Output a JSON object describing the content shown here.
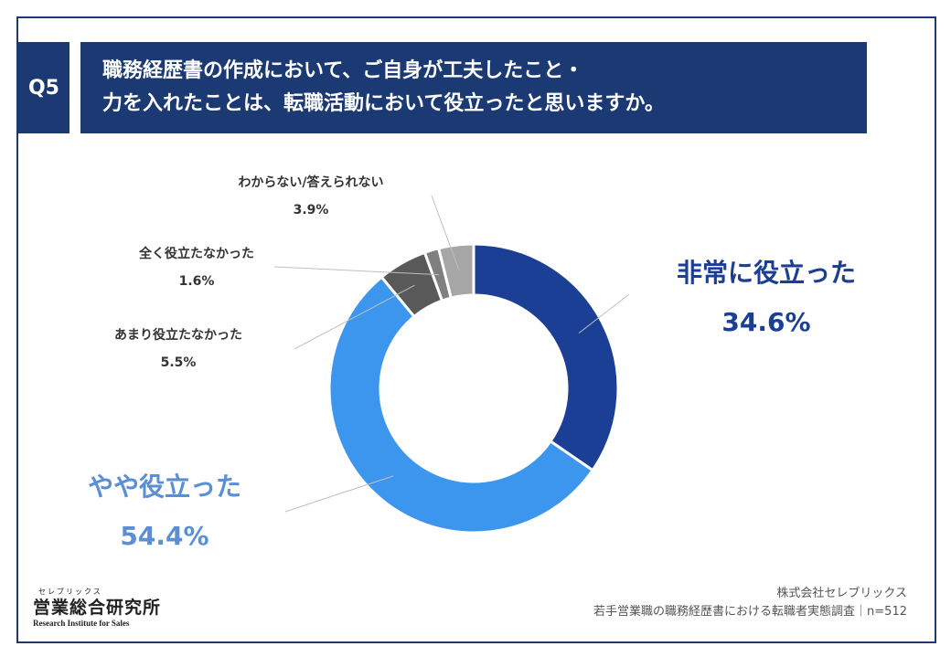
{
  "header": {
    "badge": "Q5",
    "title_line1": "職務経歴書の作成において、ご自身が工夫したこと・",
    "title_line2": "力を入れたことは、転職活動において役立ったと思いますか。"
  },
  "chart_data": {
    "type": "pie",
    "categories": [
      "非常に役立った",
      "やや役立った",
      "あまり役立たなかった",
      "全く役立たなかった",
      "わからない/答えられない"
    ],
    "values": [
      34.6,
      54.4,
      5.5,
      1.6,
      3.9
    ],
    "value_labels": [
      "34.6%",
      "54.4%",
      "5.5%",
      "1.6%",
      "3.9%"
    ],
    "colors": [
      "#1b3f94",
      "#3d96ee",
      "#595959",
      "#7f7f7f",
      "#a6a6a6"
    ]
  },
  "branding": {
    "logo_kana": "セレブリックス",
    "logo_main": "営業総合研究所",
    "logo_sub": "Research Institute for Sales"
  },
  "source": {
    "company": "株式会社セレブリックス",
    "survey": "若手営業職の職務経歴書における転職者実態調査｜n=512"
  }
}
